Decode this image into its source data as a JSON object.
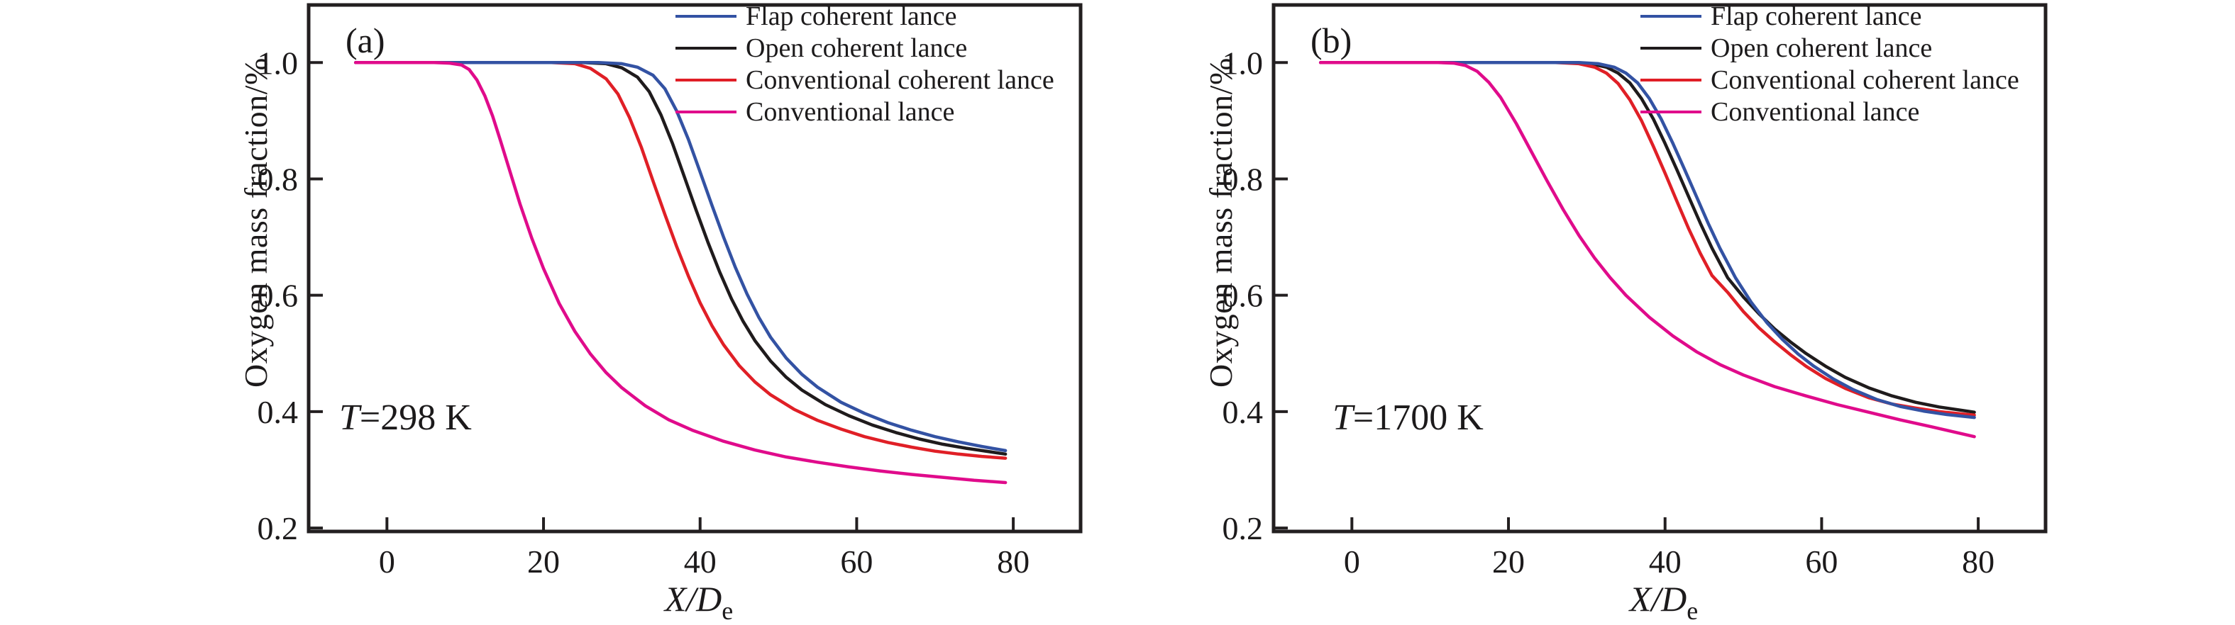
{
  "figure": {
    "background": "#ffffff",
    "axis_color": "#231f20",
    "text_color": "#1c1a1b"
  },
  "chart_data": [
    {
      "type": "line",
      "panel_label": "(a)",
      "annotation_italic": "T",
      "annotation_rest": "=298 K",
      "y_label": "Oxygen mass fraction/%",
      "x_label_italic": "X/D",
      "x_label_sub": "e",
      "x_ticks": [
        0,
        20,
        40,
        60,
        80
      ],
      "y_ticks": [
        0.2,
        0.4,
        0.6,
        0.8,
        1.0
      ],
      "xlim": [
        -10,
        88.6
      ],
      "ylim": [
        0.194,
        1.099
      ],
      "grid": false,
      "legend_position": "top-right",
      "series": [
        {
          "name": "Flap coherent lance",
          "color": "#3352a3",
          "x": [
            -4,
            22,
            27,
            30,
            32,
            34,
            35.5,
            37,
            38.5,
            40,
            41.5,
            43,
            44.5,
            46,
            47.5,
            49,
            51,
            53,
            55,
            58,
            61,
            64,
            67,
            70,
            73,
            76,
            79
          ],
          "y": [
            1.0,
            1.0,
            1.0,
            0.998,
            0.992,
            0.978,
            0.955,
            0.917,
            0.868,
            0.812,
            0.755,
            0.7,
            0.648,
            0.602,
            0.562,
            0.528,
            0.492,
            0.464,
            0.442,
            0.416,
            0.397,
            0.381,
            0.368,
            0.357,
            0.348,
            0.34,
            0.333
          ]
        },
        {
          "name": "Open coherent lance",
          "color": "#1f1b1c",
          "x": [
            -4,
            20,
            25,
            28,
            30,
            32,
            33.5,
            35,
            36.5,
            38,
            39.5,
            41,
            42.5,
            44,
            45.5,
            47,
            49,
            51,
            53,
            56,
            59,
            62,
            65,
            68,
            71,
            74,
            77,
            79
          ],
          "y": [
            1.0,
            1.0,
            1.0,
            0.998,
            0.991,
            0.975,
            0.95,
            0.91,
            0.86,
            0.803,
            0.746,
            0.691,
            0.64,
            0.594,
            0.555,
            0.522,
            0.487,
            0.459,
            0.437,
            0.412,
            0.393,
            0.377,
            0.364,
            0.353,
            0.344,
            0.337,
            0.331,
            0.327
          ]
        },
        {
          "name": "Conventional coherent lance",
          "color": "#e01f26",
          "x": [
            -4,
            16,
            21,
            24,
            26,
            28,
            29.5,
            31,
            32.5,
            34,
            35.5,
            37,
            38.5,
            40,
            41.5,
            43,
            45,
            47,
            49,
            52,
            55,
            58,
            61,
            64,
            67,
            70,
            73,
            76,
            79
          ],
          "y": [
            1.0,
            1.0,
            1.0,
            0.998,
            0.99,
            0.972,
            0.946,
            0.905,
            0.854,
            0.796,
            0.739,
            0.684,
            0.633,
            0.587,
            0.548,
            0.515,
            0.479,
            0.451,
            0.429,
            0.404,
            0.385,
            0.37,
            0.357,
            0.347,
            0.339,
            0.332,
            0.327,
            0.323,
            0.32
          ]
        },
        {
          "name": "Conventional lance",
          "color": "#e00b8b",
          "x": [
            -4,
            6,
            8,
            9.5,
            10.5,
            11.5,
            12.5,
            13.5,
            14.5,
            15.5,
            17,
            18.5,
            20,
            22,
            24,
            26,
            28,
            30,
            33,
            36,
            39,
            43,
            47,
            51,
            55,
            59,
            63,
            67,
            71,
            75,
            79
          ],
          "y": [
            1.0,
            1.0,
            0.999,
            0.996,
            0.988,
            0.97,
            0.943,
            0.908,
            0.866,
            0.822,
            0.757,
            0.698,
            0.646,
            0.586,
            0.538,
            0.499,
            0.467,
            0.441,
            0.41,
            0.386,
            0.368,
            0.349,
            0.334,
            0.322,
            0.313,
            0.305,
            0.298,
            0.292,
            0.287,
            0.282,
            0.278
          ]
        }
      ]
    },
    {
      "type": "line",
      "panel_label": "(b)",
      "annotation_italic": "T",
      "annotation_rest": "=1700 K",
      "y_label": "Oxygen mass fraction/%",
      "x_label_italic": "X/D",
      "x_label_sub": "e",
      "x_ticks": [
        0,
        20,
        40,
        60,
        80
      ],
      "y_ticks": [
        0.2,
        0.4,
        0.6,
        0.8,
        1.0
      ],
      "xlim": [
        -10,
        88.6
      ],
      "ylim": [
        0.194,
        1.099
      ],
      "grid": false,
      "legend_position": "top-right",
      "series": [
        {
          "name": "Flap coherent lance",
          "color": "#3352a3",
          "x": [
            -4,
            25,
            29,
            31.5,
            33.5,
            35,
            36.5,
            38,
            39.5,
            41,
            42.5,
            44,
            45.5,
            47,
            49,
            51,
            53,
            55,
            57,
            59,
            61.5,
            64,
            67,
            70,
            73,
            76,
            79.5
          ],
          "y": [
            1.0,
            1.0,
            1.0,
            0.998,
            0.992,
            0.982,
            0.965,
            0.938,
            0.903,
            0.861,
            0.816,
            0.77,
            0.724,
            0.681,
            0.63,
            0.588,
            0.553,
            0.524,
            0.499,
            0.478,
            0.456,
            0.438,
            0.421,
            0.409,
            0.401,
            0.395,
            0.39
          ]
        },
        {
          "name": "Open coherent lance",
          "color": "#1f1b1c",
          "x": [
            -4,
            24,
            28,
            30.5,
            32.5,
            34,
            35.5,
            37,
            38.5,
            40,
            41.5,
            43,
            44.5,
            46,
            48,
            50,
            52,
            54,
            56,
            58,
            60.5,
            63,
            66,
            69,
            72,
            75,
            78,
            79.5
          ],
          "y": [
            1.0,
            1.0,
            1.0,
            0.998,
            0.992,
            0.982,
            0.965,
            0.938,
            0.903,
            0.861,
            0.816,
            0.77,
            0.724,
            0.681,
            0.63,
            0.597,
            0.568,
            0.542,
            0.52,
            0.5,
            0.478,
            0.459,
            0.441,
            0.427,
            0.416,
            0.408,
            0.402,
            0.399
          ]
        },
        {
          "name": "Conventional coherent lance",
          "color": "#e01f26",
          "x": [
            -4,
            22,
            26,
            29,
            31,
            32.5,
            34,
            35.5,
            37,
            38.5,
            40,
            41.5,
            43,
            44.5,
            46,
            48,
            50,
            52,
            54,
            56,
            58,
            60.5,
            63,
            66,
            69,
            72,
            75,
            78,
            79.5
          ],
          "y": [
            1.0,
            1.0,
            1.0,
            0.998,
            0.992,
            0.982,
            0.964,
            0.936,
            0.9,
            0.856,
            0.81,
            0.762,
            0.715,
            0.672,
            0.634,
            0.605,
            0.572,
            0.544,
            0.52,
            0.498,
            0.478,
            0.457,
            0.44,
            0.424,
            0.413,
            0.406,
            0.4,
            0.396,
            0.394
          ]
        },
        {
          "name": "Conventional lance",
          "color": "#e00b8b",
          "x": [
            -4,
            11,
            13,
            14.5,
            16,
            17.5,
            19,
            21,
            23,
            25,
            27,
            29,
            31,
            33,
            35,
            38,
            41,
            44,
            47,
            50,
            54,
            58,
            62,
            66,
            70,
            74,
            79.5
          ],
          "y": [
            1.0,
            1.0,
            0.999,
            0.995,
            0.985,
            0.966,
            0.94,
            0.895,
            0.845,
            0.795,
            0.747,
            0.703,
            0.664,
            0.63,
            0.6,
            0.562,
            0.53,
            0.503,
            0.481,
            0.463,
            0.443,
            0.427,
            0.412,
            0.399,
            0.386,
            0.374,
            0.357
          ]
        }
      ]
    }
  ]
}
